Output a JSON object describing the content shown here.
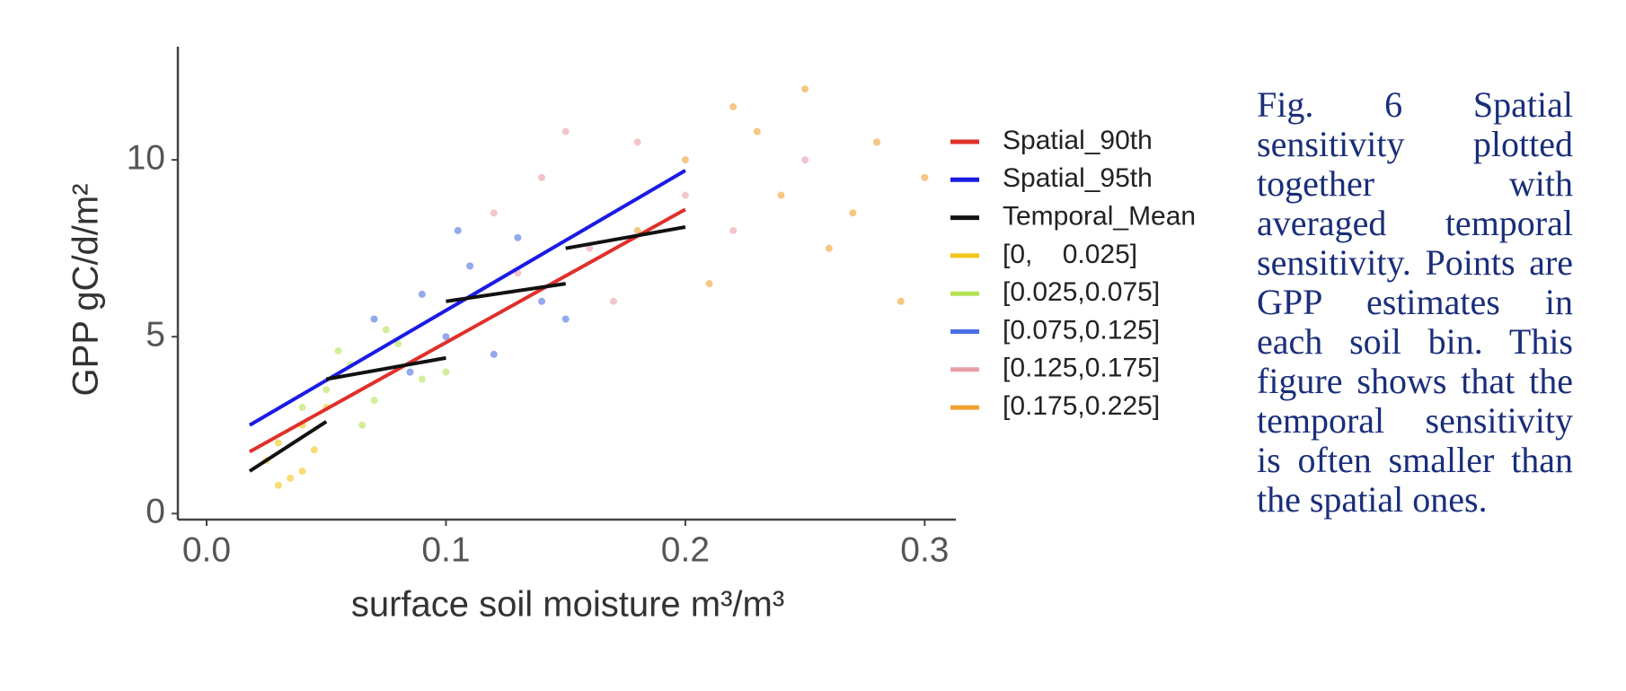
{
  "chart_data": {
    "type": "scatter",
    "x_label": "surface soil moisture  m³/m³",
    "y_label": "GPP gC/d/m²",
    "xlim": [
      -0.012,
      0.313
    ],
    "ylim": [
      -0.17,
      13.2
    ],
    "xticks": [
      {
        "value": 0,
        "label": "0.0"
      },
      0.1,
      0.2,
      0.3
    ],
    "yticks": [
      0,
      5,
      10
    ],
    "grid": false,
    "legend": "right",
    "series": [
      {
        "name": "Spatial_90th",
        "type": "line",
        "color": "#e0302a",
        "x": [
          0.018,
          0.2
        ],
        "values": [
          1.75,
          8.6
        ]
      },
      {
        "name": "Spatial_95th",
        "type": "line",
        "color": "#1a1ae6",
        "x": [
          0.018,
          0.2
        ],
        "values": [
          2.5,
          9.7
        ]
      },
      {
        "name": "Temporal_Mean",
        "type": "line",
        "color": "#111111",
        "x": [
          0.018,
          0.05,
          0.05,
          0.05,
          0.1,
          0.1,
          0.1,
          0.15,
          0.15,
          0.15,
          0.2
        ],
        "values": [
          1.2,
          2.6,
          null,
          3.8,
          4.4,
          null,
          6.0,
          6.5,
          null,
          7.5,
          8.1
        ]
      },
      {
        "name": "[0,    0.025]",
        "type": "scatter",
        "color": "#f2c51b",
        "x": [
          0.025,
          0.03,
          0.035,
          0.04,
          0.045,
          0.03,
          0.05,
          0.04
        ],
        "values": [
          1.5,
          2.0,
          1.0,
          2.5,
          1.8,
          0.8,
          3.0,
          1.2
        ]
      },
      {
        "name": "[0.025,0.075]",
        "type": "scatter",
        "color": "#b4e357",
        "x": [
          0.04,
          0.05,
          0.06,
          0.07,
          0.08,
          0.065,
          0.09,
          0.055,
          0.075,
          0.1
        ],
        "values": [
          3,
          3.5,
          4.2,
          3.2,
          4.8,
          2.5,
          3.8,
          4.6,
          5.2,
          4.0
        ]
      },
      {
        "name": "[0.075,0.125]",
        "type": "scatter",
        "color": "#4a6fe3",
        "x": [
          0.07,
          0.09,
          0.1,
          0.11,
          0.12,
          0.13,
          0.085,
          0.14,
          0.105,
          0.15
        ],
        "values": [
          5.5,
          6.2,
          5.0,
          7.0,
          4.5,
          7.8,
          4.0,
          6.0,
          8.0,
          5.5
        ]
      },
      {
        "name": "[0.125,0.175]",
        "type": "scatter",
        "color": "#e8a0a8",
        "x": [
          0.12,
          0.14,
          0.16,
          0.18,
          0.2,
          0.15,
          0.22,
          0.17,
          0.25,
          0.13
        ],
        "values": [
          8.5,
          9.5,
          7.5,
          10.5,
          9.0,
          10.8,
          8.0,
          6.0,
          10.0,
          6.8
        ]
      },
      {
        "name": "[0.175,0.225]",
        "type": "scatter",
        "color": "#f0a030",
        "x": [
          0.18,
          0.2,
          0.22,
          0.24,
          0.26,
          0.28,
          0.3,
          0.21,
          0.25,
          0.29,
          0.27,
          0.23
        ],
        "values": [
          8.0,
          10.0,
          11.5,
          9.0,
          7.5,
          10.5,
          9.5,
          6.5,
          12.0,
          6.0,
          8.5,
          10.8
        ]
      }
    ]
  },
  "caption": "Fig. 6 Spatial sensitivity plotted together with averaged temporal sensitivity. Points are GPP estimates in each soil bin. This figure shows that the temporal sensitivity is often smaller than the spatial ones."
}
